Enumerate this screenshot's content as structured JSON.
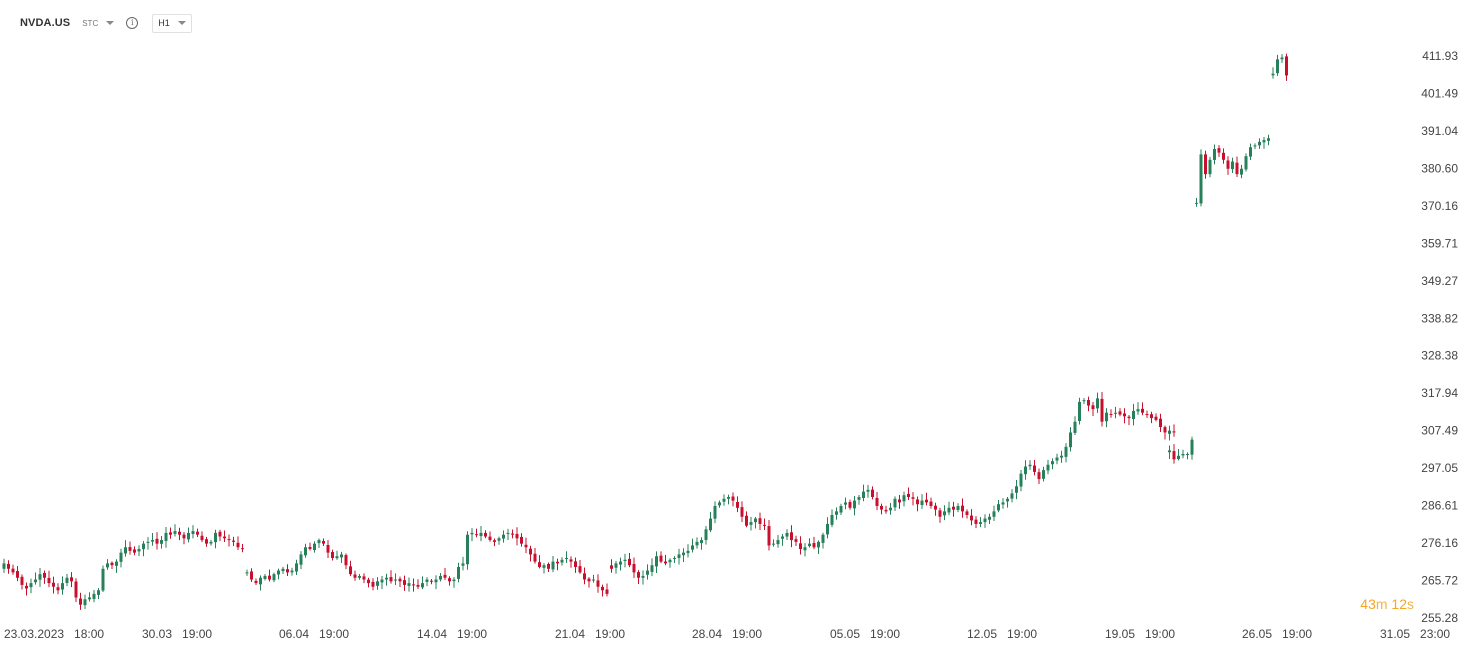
{
  "toolbar": {
    "symbol": "NVDA.US",
    "source": "STC",
    "info_glyph": "i",
    "interval": "H1"
  },
  "countdown": {
    "minutes": "43",
    "m_unit": "m",
    "seconds": "12",
    "s_unit": "s"
  },
  "colors": {
    "up": "#26805a",
    "down": "#c8102e",
    "countdown": "#f5a623"
  },
  "chart_data": {
    "type": "candlestick",
    "title": "",
    "y_ticks": [
      "411.93",
      "401.49",
      "391.04",
      "380.60",
      "370.16",
      "359.71",
      "349.27",
      "338.82",
      "328.38",
      "317.94",
      "307.49",
      "297.05",
      "286.61",
      "276.16",
      "265.72",
      "255.28"
    ],
    "ylim": [
      255.28,
      421.0
    ],
    "x_ticks": [
      "23.03.2023 18:00",
      "30.03 19:00",
      "06.04 19:00",
      "14.04 19:00",
      "21.04 19:00",
      "28.04 19:00",
      "05.05 19:00",
      "12.05 19:00",
      "19.05 19:00",
      "26.05 19:00",
      "31.05 23:00"
    ],
    "series": [
      {
        "segment_start_index": 0,
        "closes": [
          270.5,
          269.0,
          268.0,
          266.5,
          264.5,
          263.5,
          265.0,
          266.0,
          267.5,
          266.5,
          265.0,
          264.0,
          263.0,
          265.0,
          266.5,
          265.5,
          261.0,
          259.0,
          260.5,
          261.0,
          262.0,
          263.0,
          269.0,
          270.5,
          270.0,
          271.0,
          273.5,
          275.0,
          274.0,
          273.5,
          274.5,
          276.0,
          276.5,
          277.0,
          276.0,
          277.0,
          279.0,
          278.5,
          279.5,
          278.5,
          277.5,
          279.0,
          279.5,
          278.5,
          277.0,
          276.0,
          276.5,
          279.0,
          278.0,
          277.5,
          277.0,
          276.5,
          275.0,
          274.5
        ]
      },
      {
        "segment_start_index": 54,
        "closes": [
          268.0,
          266.0,
          265.0,
          266.5,
          267.0,
          266.0,
          267.5,
          268.5,
          269.0,
          268.0,
          268.5,
          270.5,
          273.0,
          275.0,
          274.5,
          276.0,
          277.0,
          276.0,
          273.5,
          272.0,
          272.5,
          273.0,
          270.0,
          267.5,
          266.5,
          267.0,
          266.0,
          265.0,
          264.0,
          265.5,
          266.0,
          266.5,
          265.5,
          266.0,
          265.5,
          264.5,
          265.0,
          264.5,
          264.0,
          265.0,
          266.0,
          265.5,
          266.0,
          267.0,
          266.5,
          265.5,
          266.0,
          269.5,
          270.5,
          278.5,
          279.0,
          278.5,
          279.0,
          278.0,
          277.0,
          276.5,
          277.5,
          278.5,
          279.0,
          278.5,
          277.5,
          276.0,
          275.0,
          273.0,
          271.0,
          269.5,
          270.0,
          269.0,
          271.0,
          270.5,
          271.5,
          272.0,
          271.0,
          269.5,
          268.0,
          266.0,
          265.5,
          266.0,
          264.0,
          263.0,
          262.0
        ]
      },
      {
        "segment_start_index": 135,
        "closes": [
          269.0,
          270.5,
          271.0,
          271.5,
          270.0,
          268.0,
          266.5,
          267.0,
          268.5,
          270.0,
          272.5,
          271.0,
          270.5,
          271.5,
          272.0,
          273.0,
          273.5,
          274.0,
          275.5,
          276.5,
          277.0,
          280.0,
          283.0,
          286.5,
          287.5,
          288.5,
          289.0,
          288.0,
          286.0,
          283.5,
          281.0,
          282.0,
          283.0,
          281.5,
          281.0,
          275.5,
          276.0,
          277.0,
          278.0,
          279.0,
          277.0,
          276.5,
          274.5,
          275.0,
          276.0,
          275.0,
          276.5,
          278.5,
          281.5,
          284.0,
          285.0,
          286.5,
          287.5,
          286.0,
          288.0,
          289.0,
          290.5,
          291.0,
          289.0,
          286.5,
          285.5,
          285.0,
          286.0,
          288.5,
          287.5,
          289.5,
          289.0,
          288.5,
          287.0,
          288.0,
          287.5,
          286.5,
          285.5,
          283.5,
          285.0,
          286.0,
          285.5,
          286.5,
          285.0,
          284.0,
          282.5,
          281.5,
          282.0,
          283.0,
          283.5,
          285.0,
          287.0,
          287.5,
          288.5,
          290.0,
          292.0,
          295.5,
          297.5,
          298.0,
          296.0,
          294.0,
          296.5,
          298.0,
          299.0,
          300.0,
          300.5,
          303.0,
          307.0,
          310.0,
          315.5,
          316.0,
          314.5,
          313.5,
          316.5,
          310.0,
          312.5,
          312.0,
          312.5,
          312.0,
          311.5,
          311.0,
          313.0,
          313.5,
          312.5,
          312.0,
          311.0,
          310.5,
          308.5,
          307.0,
          307.5,
          307.0
        ]
      },
      {
        "segment_start_index": 259,
        "closes": [
          302.0,
          299.5,
          300.5,
          301.0,
          301.0,
          305.0
        ]
      },
      {
        "segment_start_index": 265,
        "closes": [
          371.0,
          384.5,
          379.0,
          383.0,
          386.0,
          385.0,
          383.0,
          380.5,
          382.5,
          379.0,
          380.5,
          384.0,
          386.5,
          387.0,
          388.0,
          388.5,
          389.0
        ]
      },
      {
        "segment_start_index": 282,
        "closes": [
          407.0,
          411.0,
          411.5,
          406.5
        ]
      }
    ]
  }
}
